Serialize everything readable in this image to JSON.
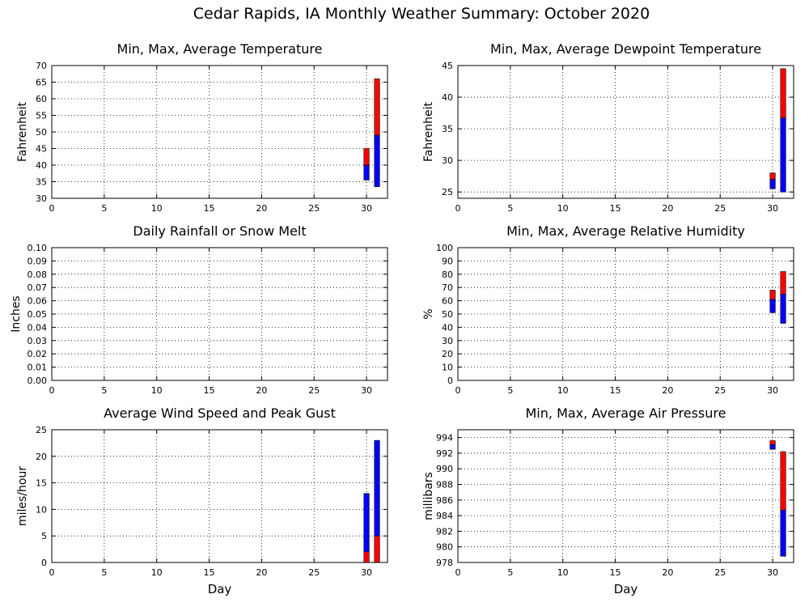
{
  "page_title": "Cedar Rapids, IA Monthly Weather Summary: October 2020",
  "x_axis_label": "Day",
  "colors": {
    "min_to_avg": "#0000ff",
    "avg_to_max": "#ff0000",
    "grid": "#000000"
  },
  "chart_data": [
    {
      "id": "temperature",
      "type": "bar",
      "title": "Min, Max, Average Temperature",
      "ylabel": "Fahrenheit",
      "xlabel": "",
      "xlim": [
        0,
        32
      ],
      "xticks": [
        0,
        5,
        10,
        15,
        20,
        25,
        30
      ],
      "ylim": [
        30,
        70
      ],
      "yticks": [
        30,
        35,
        40,
        45,
        50,
        55,
        60,
        65,
        70
      ],
      "tick_decimals": 0,
      "grid": true,
      "style": "min-avg-max",
      "bars": [
        {
          "day": 30,
          "min": 35.5,
          "avg": 40,
          "max": 45
        },
        {
          "day": 31,
          "min": 33.5,
          "avg": 49,
          "max": 66
        }
      ]
    },
    {
      "id": "dewpoint",
      "type": "bar",
      "title": "Min, Max, Average Dewpoint Temperature",
      "ylabel": "Fahrenheit",
      "xlabel": "",
      "xlim": [
        0,
        32
      ],
      "xticks": [
        0,
        5,
        10,
        15,
        20,
        25,
        30
      ],
      "ylim": [
        24,
        45
      ],
      "yticks": [
        25,
        30,
        35,
        40,
        45
      ],
      "tick_decimals": 0,
      "grid": true,
      "style": "min-avg-max",
      "bars": [
        {
          "day": 30,
          "min": 25.5,
          "avg": 27,
          "max": 28
        },
        {
          "day": 31,
          "min": 25,
          "avg": 36.7,
          "max": 44.5
        }
      ]
    },
    {
      "id": "rainfall",
      "type": "bar",
      "title": "Daily Rainfall or Snow Melt",
      "ylabel": "Inches",
      "xlabel": "",
      "xlim": [
        0,
        32
      ],
      "xticks": [
        0,
        5,
        10,
        15,
        20,
        25,
        30
      ],
      "ylim": [
        0,
        0.1
      ],
      "yticks": [
        0,
        0.01,
        0.02,
        0.03,
        0.04,
        0.05,
        0.06,
        0.07,
        0.08,
        0.09,
        0.1
      ],
      "tick_decimals": 2,
      "grid": true,
      "style": "single",
      "bars": []
    },
    {
      "id": "humidity",
      "type": "bar",
      "title": "Min, Max, Average Relative Humidity",
      "ylabel": "%",
      "xlabel": "",
      "xlim": [
        0,
        32
      ],
      "xticks": [
        0,
        5,
        10,
        15,
        20,
        25,
        30
      ],
      "ylim": [
        0,
        100
      ],
      "yticks": [
        0,
        10,
        20,
        30,
        40,
        50,
        60,
        70,
        80,
        90,
        100
      ],
      "tick_decimals": 0,
      "grid": true,
      "style": "min-avg-max",
      "bars": [
        {
          "day": 30,
          "min": 51,
          "avg": 61,
          "max": 68
        },
        {
          "day": 31,
          "min": 43,
          "avg": 65,
          "max": 82
        }
      ]
    },
    {
      "id": "wind",
      "type": "bar",
      "title": "Average Wind Speed and Peak Gust",
      "ylabel": "miles/hour",
      "xlabel": "Day",
      "xlim": [
        0,
        32
      ],
      "xticks": [
        0,
        5,
        10,
        15,
        20,
        25,
        30
      ],
      "ylim": [
        0,
        25
      ],
      "yticks": [
        0,
        5,
        10,
        15,
        20,
        25
      ],
      "tick_decimals": 0,
      "grid": true,
      "style": "avg-gust",
      "bars": [
        {
          "day": 30,
          "avg": 2,
          "gust": 13
        },
        {
          "day": 31,
          "avg": 5,
          "gust": 23
        }
      ]
    },
    {
      "id": "pressure",
      "type": "bar",
      "title": "Min, Max, Average Air Pressure",
      "ylabel": "millibars",
      "xlabel": "Day",
      "xlim": [
        0,
        32
      ],
      "xticks": [
        0,
        5,
        10,
        15,
        20,
        25,
        30
      ],
      "ylim": [
        978,
        995
      ],
      "yticks": [
        978,
        980,
        982,
        984,
        986,
        988,
        990,
        992,
        994
      ],
      "tick_decimals": 0,
      "grid": true,
      "style": "min-avg-max",
      "bars": [
        {
          "day": 30,
          "min": 992.5,
          "avg": 993.1,
          "max": 993.6
        },
        {
          "day": 31,
          "min": 978.8,
          "avg": 984.7,
          "max": 992.2
        }
      ]
    }
  ]
}
